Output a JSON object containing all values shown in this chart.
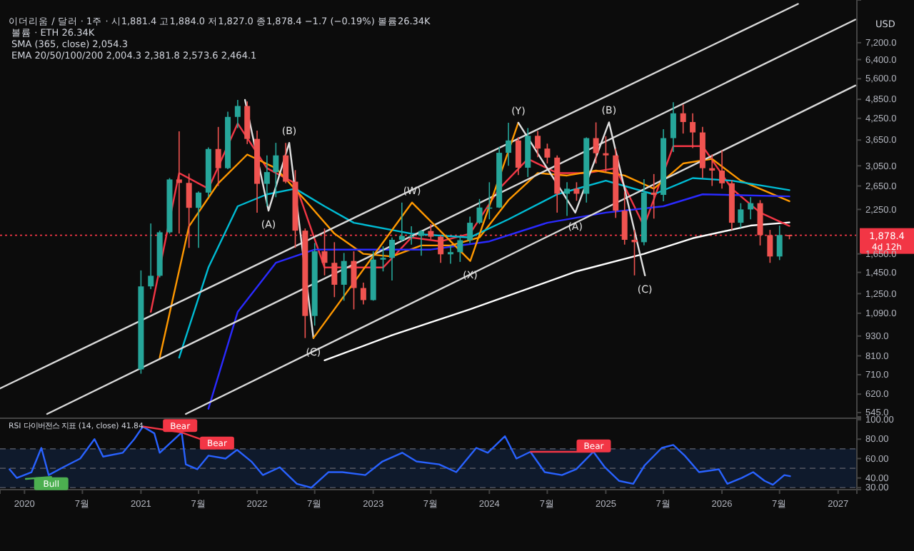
{
  "chart_data": [
    {
      "type": "candlestick",
      "title": "이더리움 / 달러 · 1주 ·  시1,881.4 고1,884.0 저1,827.0 종1,878.4 −1.7 (−0.19%) 볼륨26.34K",
      "ylabel": "USD",
      "log": "y",
      "tick_labels": "y",
      "xlim": [
        "2019-10-16",
        "2027-03-01"
      ],
      "ylim": [
        524,
        9700
      ],
      "yticks": [
        {
          "value": 545,
          "label": "545.0"
        },
        {
          "value": 620,
          "label": "620.0"
        },
        {
          "value": 710,
          "label": "710.0"
        },
        {
          "value": 810,
          "label": "810.0"
        },
        {
          "value": 930,
          "label": "930.0"
        },
        {
          "value": 1090,
          "label": "1,090.0"
        },
        {
          "value": 1250,
          "label": "1,250.0"
        },
        {
          "value": 1450,
          "label": "1,450.0"
        },
        {
          "value": 1650,
          "label": "1,650.0"
        },
        {
          "value": 2250,
          "label": "2,250.0"
        },
        {
          "value": 2650,
          "label": "2,650.0"
        },
        {
          "value": 3050,
          "label": "3,050.0"
        },
        {
          "value": 3650,
          "label": "3,650.0"
        },
        {
          "value": 4250,
          "label": "4,250.0"
        },
        {
          "value": 4850,
          "label": "4,850.0"
        },
        {
          "value": 5600,
          "label": "5,600.0"
        },
        {
          "value": 6400,
          "label": "6,400.0"
        },
        {
          "value": 7200,
          "label": "7,200.0"
        }
      ],
      "x": [
        "2021-01",
        "2021-02",
        "2021-03",
        "2021-04",
        "2021-05",
        "2021-06",
        "2021-07",
        "2021-08",
        "2021-09",
        "2021-10",
        "2021-11",
        "2021-12",
        "2022-01",
        "2022-02",
        "2022-03",
        "2022-04",
        "2022-05",
        "2022-06",
        "2022-07",
        "2022-08",
        "2022-09",
        "2022-10",
        "2022-11",
        "2022-12",
        "2023-01",
        "2023-02",
        "2023-03",
        "2023-04",
        "2023-05",
        "2023-06",
        "2023-07",
        "2023-08",
        "2023-09",
        "2023-10",
        "2023-11",
        "2023-12",
        "2024-01",
        "2024-02",
        "2024-03",
        "2024-04",
        "2024-05",
        "2024-06",
        "2024-07",
        "2024-08",
        "2024-09",
        "2024-10",
        "2024-11",
        "2024-12",
        "2025-01",
        "2025-02",
        "2025-03",
        "2025-04",
        "2025-05",
        "2025-06",
        "2025-07",
        "2025-08",
        "2025-09",
        "2025-10",
        "2025-11",
        "2025-12",
        "2026-01",
        "2026-02",
        "2026-03",
        "2026-04",
        "2026-05",
        "2026-06",
        "2026-07",
        "2026-08"
      ],
      "ohlc": [
        [
          737,
          1470,
          715,
          1315
        ],
        [
          1315,
          2040,
          1290,
          1416
        ],
        [
          1416,
          1940,
          1400,
          1918
        ],
        [
          1918,
          2800,
          1900,
          2773
        ],
        [
          2773,
          3880,
          1900,
          2707
        ],
        [
          2707,
          2890,
          1720,
          2275
        ],
        [
          2275,
          2550,
          1720,
          2530
        ],
        [
          2530,
          3470,
          2450,
          3430
        ],
        [
          3430,
          4000,
          2650,
          3000
        ],
        [
          3000,
          4450,
          2980,
          4290
        ],
        [
          4290,
          4830,
          3970,
          4630
        ],
        [
          4630,
          4780,
          3550,
          3680
        ],
        [
          3680,
          3900,
          2200,
          2690
        ],
        [
          2690,
          3280,
          2300,
          2920
        ],
        [
          2920,
          3580,
          2450,
          3280
        ],
        [
          3280,
          3580,
          2700,
          2730
        ],
        [
          2730,
          2960,
          1720,
          1940
        ],
        [
          1940,
          1970,
          917,
          1070
        ],
        [
          1070,
          1780,
          1000,
          1680
        ],
        [
          1680,
          1970,
          1420,
          1550
        ],
        [
          1550,
          1790,
          1220,
          1330
        ],
        [
          1330,
          1660,
          1190,
          1570
        ],
        [
          1570,
          1680,
          1120,
          1300
        ],
        [
          1300,
          1350,
          1160,
          1195
        ],
        [
          1195,
          1680,
          1190,
          1585
        ],
        [
          1585,
          1740,
          1460,
          1605
        ],
        [
          1605,
          1850,
          1370,
          1820
        ],
        [
          1820,
          2360,
          1800,
          1870
        ],
        [
          1870,
          2000,
          1760,
          1870
        ],
        [
          1870,
          1950,
          1630,
          1935
        ],
        [
          1935,
          2030,
          1830,
          1860
        ],
        [
          1860,
          1880,
          1550,
          1645
        ],
        [
          1645,
          1750,
          1540,
          1670
        ],
        [
          1670,
          1860,
          1560,
          1815
        ],
        [
          1815,
          2140,
          1780,
          2050
        ],
        [
          2050,
          2420,
          2030,
          2280
        ],
        [
          2280,
          2720,
          2100,
          2280
        ],
        [
          2280,
          3480,
          2270,
          3340
        ],
        [
          3340,
          4120,
          3050,
          3640
        ],
        [
          3640,
          3730,
          2860,
          3010
        ],
        [
          3010,
          3970,
          2820,
          3760
        ],
        [
          3760,
          3890,
          3240,
          3440
        ],
        [
          3440,
          3560,
          3100,
          3230
        ],
        [
          3230,
          3280,
          2200,
          2510
        ],
        [
          2510,
          2720,
          2150,
          2600
        ],
        [
          2600,
          2720,
          2390,
          2510
        ],
        [
          2510,
          3720,
          2360,
          3700
        ],
        [
          3700,
          4130,
          3100,
          3330
        ],
        [
          3330,
          3750,
          2920,
          3280
        ],
        [
          3280,
          3440,
          2120,
          2230
        ],
        [
          2230,
          2550,
          1760,
          1820
        ],
        [
          1820,
          1950,
          1420,
          1790
        ],
        [
          1790,
          2780,
          1750,
          2530
        ],
        [
          2530,
          2880,
          2110,
          2490
        ],
        [
          2490,
          3940,
          2380,
          3700
        ],
        [
          3700,
          4750,
          3360,
          4400
        ],
        [
          4400,
          4680,
          3820,
          4140
        ],
        [
          4140,
          4400,
          3450,
          3850
        ],
        [
          3850,
          4000,
          2800,
          3000
        ],
        [
          3000,
          3300,
          2650,
          2950
        ],
        [
          2950,
          3400,
          2600,
          2700
        ],
        [
          2700,
          2760,
          1950,
          2050
        ],
        [
          2050,
          2350,
          1980,
          2250
        ],
        [
          2250,
          2450,
          2100,
          2350
        ],
        [
          2350,
          2400,
          1750,
          1880
        ],
        [
          1880,
          1950,
          1550,
          1620
        ],
        [
          1620,
          2010,
          1580,
          1881.4
        ],
        [
          1881.4,
          1884.0,
          1827.0,
          1878.4
        ]
      ],
      "series": [
        {
          "type": "line",
          "color": "#ffffff",
          "x": [
            "2022-08-01",
            "2023-03-01",
            "2023-11-01",
            "2024-10-01",
            "2025-05-01",
            "2025-10-01",
            "2026-04-01",
            "2026-08-01"
          ],
          "values": [
            785,
            935,
            1120,
            1460,
            1650,
            1840,
            2010,
            2054.3
          ]
        },
        {
          "type": "line",
          "color": "#f23645",
          "x": [
            "2021-02",
            "2021-05",
            "2021-08",
            "2021-11",
            "2022-02",
            "2022-05",
            "2022-08",
            "2022-11",
            "2023-02",
            "2023-05",
            "2023-08",
            "2023-11",
            "2024-02",
            "2024-05",
            "2024-08",
            "2024-11",
            "2025-02",
            "2025-05",
            "2025-08",
            "2025-11",
            "2026-02",
            "2026-05",
            "2026-08"
          ],
          "values": [
            1100,
            2900,
            2600,
            4100,
            3000,
            2700,
            1500,
            1500,
            1500,
            1850,
            1800,
            1900,
            2600,
            3200,
            2900,
            2900,
            3000,
            2000,
            3500,
            3500,
            2600,
            2200,
            2004.3
          ]
        },
        {
          "type": "line",
          "color": "#ff9800",
          "x": [
            "2021-03",
            "2021-06",
            "2021-09",
            "2021-12",
            "2022-03",
            "2022-06",
            "2022-09",
            "2022-12",
            "2023-03",
            "2023-06",
            "2023-09",
            "2023-12",
            "2024-03",
            "2024-06",
            "2024-09",
            "2024-12",
            "2025-03",
            "2025-06",
            "2025-09",
            "2025-12",
            "2026-03",
            "2026-08"
          ],
          "values": [
            800,
            2000,
            2700,
            3300,
            3000,
            2400,
            1900,
            1650,
            1620,
            1750,
            1750,
            1850,
            2400,
            2900,
            2850,
            2950,
            2850,
            2600,
            3100,
            3200,
            2750,
            2381.8
          ]
        },
        {
          "type": "line",
          "color": "#00bcd4",
          "x": [
            "2021-05",
            "2021-08",
            "2021-11",
            "2022-02",
            "2022-05",
            "2022-08",
            "2022-11",
            "2023-05",
            "2023-11",
            "2024-03",
            "2024-08",
            "2025-01",
            "2025-06",
            "2025-10",
            "2026-02",
            "2026-08"
          ],
          "values": [
            800,
            1500,
            2300,
            2500,
            2600,
            2300,
            2050,
            1900,
            1850,
            2100,
            2500,
            2750,
            2500,
            2800,
            2750,
            2573.6
          ]
        },
        {
          "type": "line",
          "color": "#2a2aff",
          "x": [
            "2021-08",
            "2021-11",
            "2022-03",
            "2022-07",
            "2023-01",
            "2023-07",
            "2024-01",
            "2024-07",
            "2025-01",
            "2025-07",
            "2025-11",
            "2026-08"
          ],
          "values": [
            560,
            1100,
            1550,
            1700,
            1700,
            1700,
            1800,
            2050,
            2200,
            2300,
            2500,
            2464.1
          ]
        },
        {
          "type": "line",
          "color": "#d9d9d9",
          "x": [
            "2019-10-16",
            "2026-08-28"
          ],
          "values": [
            645,
            9440
          ]
        },
        {
          "type": "line",
          "color": "#d9d9d9",
          "x": [
            "2020-03-12",
            "2027-02-24"
          ],
          "values": [
            540,
            8460
          ]
        },
        {
          "type": "line",
          "color": "#d9d9d9",
          "x": [
            "2021-05-22",
            "2027-02-24"
          ],
          "values": [
            540,
            5340
          ]
        },
        {
          "type": "line",
          "color": "#e0e0e0",
          "x": [
            "2021-11-24",
            "2022-02-06",
            "2022-04-12",
            "2022-06-27"
          ],
          "values": [
            4830,
            2230,
            3580,
            917
          ]
        },
        {
          "type": "line",
          "color": "#ff9800",
          "x": [
            "2022-06-27",
            "2023-05-03",
            "2023-11-02",
            "2024-04-01"
          ],
          "values": [
            917,
            2360,
            1570,
            4120
          ]
        },
        {
          "type": "line",
          "color": "#e0e0e0",
          "x": [
            "2024-04-01",
            "2024-09-27",
            "2025-01-11",
            "2025-05-04"
          ],
          "values": [
            4120,
            2200,
            4130,
            1420
          ]
        }
      ],
      "ref_lines": [
        {
          "axis": "y",
          "value": 1878.4,
          "label": "1,878.4",
          "color": "#f23645",
          "line_style": "dotted"
        }
      ],
      "annotations": [
        "볼륨 · ETH 26.34K",
        "SMA (365, close) 2,054.3",
        "EMA 20/50/100/200 2,004.3 2,381.8 2,573.6 2,464.1",
        "4d 12h",
        {
          "text": "(A)",
          "x": "2022-02-06",
          "y": 2230
        },
        {
          "text": "(B)",
          "x": "2022-04-12",
          "y": 3580
        },
        {
          "text": "(C)",
          "x": "2022-06-27",
          "y": 917
        },
        {
          "text": "(W)",
          "x": "2023-05-03",
          "y": 2360
        },
        {
          "text": "(X)",
          "x": "2023-11-02",
          "y": 1570
        },
        {
          "text": "(Y)",
          "x": "2024-04-01",
          "y": 4120
        },
        {
          "text": "(A)",
          "x": "2024-09-27",
          "y": 2200
        },
        {
          "text": "(B)",
          "x": "2025-01-11",
          "y": 4130
        },
        {
          "text": "(C)",
          "x": "2025-05-04",
          "y": 1420
        }
      ]
    },
    {
      "type": "line",
      "title": "RSI 다이버전스 지표 (14, close)  41.84",
      "xlim": [
        "2019-10-16",
        "2027-03-01"
      ],
      "xticks": [
        {
          "value": "2020-01-01",
          "label": "2020"
        },
        {
          "value": "2020-07-01",
          "label": "7월"
        },
        {
          "value": "2021-01-01",
          "label": "2021"
        },
        {
          "value": "2021-07-01",
          "label": "7월"
        },
        {
          "value": "2022-01-01",
          "label": "2022"
        },
        {
          "value": "2022-07-01",
          "label": "7월"
        },
        {
          "value": "2023-01-01",
          "label": "2023"
        },
        {
          "value": "2023-07-01",
          "label": "7월"
        },
        {
          "value": "2024-01-01",
          "label": "2024"
        },
        {
          "value": "2024-07-01",
          "label": "7월"
        },
        {
          "value": "2025-01-01",
          "label": "2025"
        },
        {
          "value": "2025-07-01",
          "label": "7월"
        },
        {
          "value": "2026-01-01",
          "label": "2026"
        },
        {
          "value": "2026-07-01",
          "label": "7월"
        },
        {
          "value": "2027-01-01",
          "label": "2027"
        }
      ],
      "ylim": [
        28,
        103
      ],
      "yticks": [
        {
          "value": 30,
          "label": "30.00"
        },
        {
          "value": 40,
          "label": "40.00"
        },
        {
          "value": 60,
          "label": "60.00"
        },
        {
          "value": 80,
          "label": "80.00"
        },
        {
          "value": 100,
          "label": "100.00"
        }
      ],
      "bands": [
        {
          "axis": "y",
          "from": 30,
          "to": 70,
          "color": "#0f1a2c"
        }
      ],
      "ref_lines": [
        {
          "axis": "y",
          "value": 70,
          "color": "#4a4e5a",
          "line_style": "dashed"
        },
        {
          "axis": "y",
          "value": 50,
          "color": "#4a4e5a",
          "line_style": "dashed"
        },
        {
          "axis": "y",
          "value": 30,
          "color": "#4a4e5a",
          "line_style": "dashed"
        }
      ],
      "series": [
        {
          "color": "#2962ff",
          "x": [
            "2019-11-15",
            "2019-12-08",
            "2020-01-23",
            "2020-02-23",
            "2020-03-17",
            "2020-05-01",
            "2020-06-24",
            "2020-08-08",
            "2020-09-04",
            "2020-11-05",
            "2020-12-11",
            "2021-01-07",
            "2021-02-12",
            "2021-03-01",
            "2021-05-09",
            "2021-05-22",
            "2021-06-27",
            "2021-08-01",
            "2021-09-24",
            "2021-10-30",
            "2021-12-14",
            "2022-01-19",
            "2022-03-13",
            "2022-05-06",
            "2022-06-20",
            "2022-08-13",
            "2022-09-26",
            "2022-12-07",
            "2023-01-30",
            "2023-04-02",
            "2023-05-17",
            "2023-07-27",
            "2023-09-19",
            "2023-11-21",
            "2023-12-27",
            "2024-02-19",
            "2024-03-26",
            "2024-05-09",
            "2024-06-23",
            "2024-08-16",
            "2024-09-30",
            "2024-11-23",
            "2024-12-29",
            "2025-02-12",
            "2025-03-28",
            "2025-05-03",
            "2025-06-26",
            "2025-08-01",
            "2025-09-06",
            "2025-10-21",
            "2025-12-22",
            "2026-01-18",
            "2026-03-04",
            "2026-04-09",
            "2026-05-15",
            "2026-06-10",
            "2026-07-16",
            "2026-08-03"
          ],
          "values": [
            49,
            40,
            46,
            71,
            43,
            51,
            60,
            80,
            62,
            66,
            80,
            93,
            86,
            66,
            87,
            54,
            49,
            63,
            60,
            69,
            57,
            43,
            51,
            34,
            30,
            46,
            46,
            43,
            57,
            66,
            57,
            54,
            46,
            71,
            66,
            83,
            60,
            67,
            46,
            43,
            49,
            67,
            51,
            37,
            34,
            53,
            71,
            74,
            63,
            46,
            49,
            34,
            40,
            46,
            37,
            33,
            43,
            41.84
          ]
        },
        {
          "color": "#4caf50",
          "x": [
            "2020-01-05",
            "2020-03-25"
          ],
          "values": [
            39,
            41
          ]
        },
        {
          "color": "#f23645",
          "x": [
            "2021-01-08",
            "2021-05-08",
            "2021-09-24"
          ],
          "values": [
            93,
            87,
            71
          ]
        },
        {
          "color": "#f23645",
          "x": [
            "2024-05-10",
            "2024-11-24"
          ],
          "values": [
            67,
            67
          ]
        }
      ],
      "annotations": [
        {
          "text": "Bull",
          "x": "2020-03-25",
          "y": 34
        },
        {
          "text": "Bear",
          "x": "2021-05-04",
          "y": 94
        },
        {
          "text": "Bear",
          "x": "2021-08-28",
          "y": 76
        },
        {
          "text": "Bear",
          "x": "2024-11-24",
          "y": 73
        }
      ]
    }
  ]
}
